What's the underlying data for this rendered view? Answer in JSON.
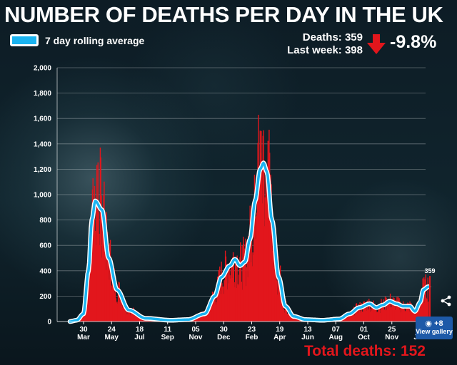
{
  "title": "NUMBER OF DEATHS PER DAY IN THE UK",
  "legend_label": "7 day rolling average",
  "stats": {
    "deaths_line": "Deaths: 359",
    "last_week_line": "Last week: 398",
    "change": "-9.8%"
  },
  "total_deaths": "Total deaths: 152",
  "gallery": {
    "count": "+8",
    "label": "View gallery"
  },
  "colors": {
    "bars": "#e2161c",
    "average": "#1ab3f0",
    "average_outline": "#ffffff"
  },
  "chart_data": {
    "type": "bar",
    "ylim": [
      0,
      2000
    ],
    "yticks": [
      "0",
      "200",
      "400",
      "600",
      "800",
      "1,000",
      "1,200",
      "1,400",
      "1,600",
      "1,800",
      "2,000"
    ],
    "xticks": [
      {
        "day": "30",
        "month": "Mar"
      },
      {
        "day": "24",
        "month": "May"
      },
      {
        "day": "18",
        "month": "Jul"
      },
      {
        "day": "11",
        "month": "Sep"
      },
      {
        "day": "05",
        "month": "Nov"
      },
      {
        "day": "30",
        "month": "Dec"
      },
      {
        "day": "23",
        "month": "Feb"
      },
      {
        "day": "19",
        "month": "Apr"
      },
      {
        "day": "13",
        "month": "Jun"
      },
      {
        "day": "07",
        "month": "Aug"
      },
      {
        "day": "01",
        "month": "Oct"
      },
      {
        "day": "25",
        "month": "Nov"
      },
      {
        "day": "19",
        "month": "Jan"
      }
    ],
    "series": [
      {
        "name": "Deaths",
        "type": "bar"
      },
      {
        "name": "7 day rolling average",
        "type": "line"
      }
    ],
    "shape_points": [
      [
        0,
        0
      ],
      [
        4,
        10
      ],
      [
        8,
        60
      ],
      [
        11,
        400
      ],
      [
        13,
        800
      ],
      [
        15,
        950
      ],
      [
        19,
        880
      ],
      [
        23,
        500
      ],
      [
        28,
        250
      ],
      [
        35,
        90
      ],
      [
        45,
        25
      ],
      [
        60,
        10
      ],
      [
        70,
        15
      ],
      [
        80,
        60
      ],
      [
        86,
        200
      ],
      [
        90,
        350
      ],
      [
        95,
        440
      ],
      [
        98,
        490
      ],
      [
        101,
        440
      ],
      [
        104,
        470
      ],
      [
        107,
        650
      ],
      [
        110,
        950
      ],
      [
        113,
        1200
      ],
      [
        115,
        1250
      ],
      [
        117,
        1180
      ],
      [
        120,
        800
      ],
      [
        124,
        350
      ],
      [
        128,
        120
      ],
      [
        133,
        40
      ],
      [
        140,
        15
      ],
      [
        150,
        10
      ],
      [
        160,
        20
      ],
      [
        166,
        60
      ],
      [
        172,
        110
      ],
      [
        178,
        140
      ],
      [
        182,
        110
      ],
      [
        186,
        130
      ],
      [
        190,
        160
      ],
      [
        194,
        140
      ],
      [
        198,
        120
      ],
      [
        202,
        120
      ],
      [
        205,
        80
      ],
      [
        208,
        150
      ],
      [
        210,
        250
      ],
      [
        213,
        275
      ]
    ],
    "last_value_label": "359",
    "last_value": 359
  }
}
